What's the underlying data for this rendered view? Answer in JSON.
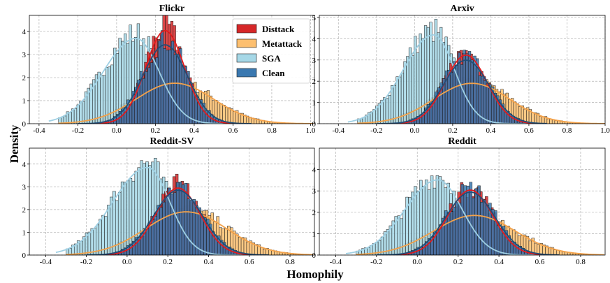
{
  "figure": {
    "ylabel": "Density",
    "xlabel": "Homophily"
  },
  "colors": {
    "Disttack": "#d62728",
    "Metattack": "#fdbf6f",
    "SGA": "#a6d8e7",
    "Clean": "#3a78b0",
    "Disttack_line": "#e31a1c",
    "Metattack_line": "#f4a24a",
    "SGA_line": "#9fd0e4",
    "Clean_line": "#1f4e79"
  },
  "legend": {
    "entries": [
      "Disttack",
      "Metattack",
      "SGA",
      "Clean"
    ],
    "placement": "top-right of first panel"
  },
  "chart_data": [
    {
      "type": "histogram",
      "title": "Flickr",
      "xlim": [
        -0.45,
        1.02
      ],
      "ylim": [
        0,
        4.7
      ],
      "xticks": [
        "-0.4",
        "-0.2",
        "0.0",
        "0.2",
        "0.4",
        "0.6",
        "0.8",
        "1.0"
      ],
      "yticks": [
        "0",
        "1",
        "2",
        "3",
        "4"
      ],
      "grid": true,
      "series": [
        {
          "name": "Metattack",
          "shape": "normal",
          "mean": 0.3,
          "sd": 0.2,
          "peak": 1.85,
          "range": [
            -0.25,
            0.97
          ]
        },
        {
          "name": "SGA",
          "shape": "skewed",
          "mode": 0.1,
          "sd_left": 0.17,
          "sd_right": 0.12,
          "peak": 3.9,
          "range": [
            -0.3,
            0.65
          ]
        },
        {
          "name": "Disttack",
          "shape": "normal",
          "mean": 0.25,
          "sd": 0.1,
          "peak": 4.25,
          "range": [
            -0.1,
            0.6
          ]
        },
        {
          "name": "Clean",
          "shape": "normal",
          "mean": 0.25,
          "sd": 0.115,
          "peak": 3.6,
          "range": [
            -0.15,
            0.65
          ]
        }
      ]
    },
    {
      "type": "histogram",
      "title": "Arxiv",
      "xlim": [
        -0.5,
        1.0
      ],
      "ylim": [
        0,
        5.1
      ],
      "xticks": [
        "-0.4",
        "-0.2",
        "0.0",
        "0.2",
        "0.4",
        "0.6",
        "0.8",
        "1.0"
      ],
      "yticks": [
        "0",
        "1",
        "2",
        "3",
        "4",
        "5"
      ],
      "grid": true,
      "series": [
        {
          "name": "Metattack",
          "shape": "normal",
          "mean": 0.3,
          "sd": 0.2,
          "peak": 2.0,
          "range": [
            -0.25,
            0.97
          ]
        },
        {
          "name": "SGA",
          "shape": "skewed",
          "mode": 0.1,
          "sd_left": 0.16,
          "sd_right": 0.11,
          "peak": 4.4,
          "range": [
            -0.3,
            0.65
          ]
        },
        {
          "name": "Disttack",
          "shape": "normal",
          "mean": 0.27,
          "sd": 0.11,
          "peak": 3.4,
          "range": [
            -0.1,
            0.6
          ]
        },
        {
          "name": "Clean",
          "shape": "normal",
          "mean": 0.27,
          "sd": 0.12,
          "peak": 3.15,
          "range": [
            -0.15,
            0.65
          ]
        }
      ]
    },
    {
      "type": "histogram",
      "title": "Reddit-SV",
      "xlim": [
        -0.48,
        0.92
      ],
      "ylim": [
        0,
        4.7
      ],
      "xticks": [
        "-0.4",
        "-0.2",
        "0.0",
        "0.2",
        "0.4",
        "0.6",
        "0.8"
      ],
      "yticks": [
        "0",
        "1",
        "2",
        "3",
        "4"
      ],
      "grid": true,
      "series": [
        {
          "name": "Metattack",
          "shape": "normal",
          "mean": 0.29,
          "sd": 0.2,
          "peak": 2.0,
          "range": [
            -0.25,
            0.87
          ]
        },
        {
          "name": "SGA",
          "shape": "skewed",
          "mode": 0.1,
          "sd_left": 0.17,
          "sd_right": 0.11,
          "peak": 4.05,
          "range": [
            -0.3,
            0.6
          ]
        },
        {
          "name": "Disttack",
          "shape": "normal",
          "mean": 0.25,
          "sd": 0.11,
          "peak": 3.1,
          "range": [
            -0.1,
            0.6
          ]
        },
        {
          "name": "Clean",
          "shape": "normal",
          "mean": 0.25,
          "sd": 0.12,
          "peak": 3.0,
          "range": [
            -0.15,
            0.65
          ]
        }
      ]
    },
    {
      "type": "histogram",
      "title": "Reddit",
      "xlim": [
        -0.48,
        0.92
      ],
      "ylim": [
        0,
        5.0
      ],
      "xticks": [
        "-0.4",
        "-0.2",
        "0.0",
        "0.2",
        "0.4",
        "0.6",
        "0.8"
      ],
      "yticks": [
        "0",
        "1",
        "2",
        "3",
        "4"
      ],
      "grid": true,
      "series": [
        {
          "name": "Metattack",
          "shape": "normal",
          "mean": 0.28,
          "sd": 0.2,
          "peak": 1.95,
          "range": [
            -0.25,
            0.87
          ]
        },
        {
          "name": "SGA",
          "shape": "skewed",
          "mode": 0.1,
          "sd_left": 0.16,
          "sd_right": 0.12,
          "peak": 3.7,
          "range": [
            -0.3,
            0.6
          ]
        },
        {
          "name": "Disttack",
          "shape": "normal",
          "mean": 0.26,
          "sd": 0.11,
          "peak": 3.2,
          "range": [
            -0.1,
            0.6
          ]
        },
        {
          "name": "Clean",
          "shape": "normal",
          "mean": 0.26,
          "sd": 0.12,
          "peak": 3.1,
          "range": [
            -0.15,
            0.65
          ]
        }
      ]
    }
  ]
}
